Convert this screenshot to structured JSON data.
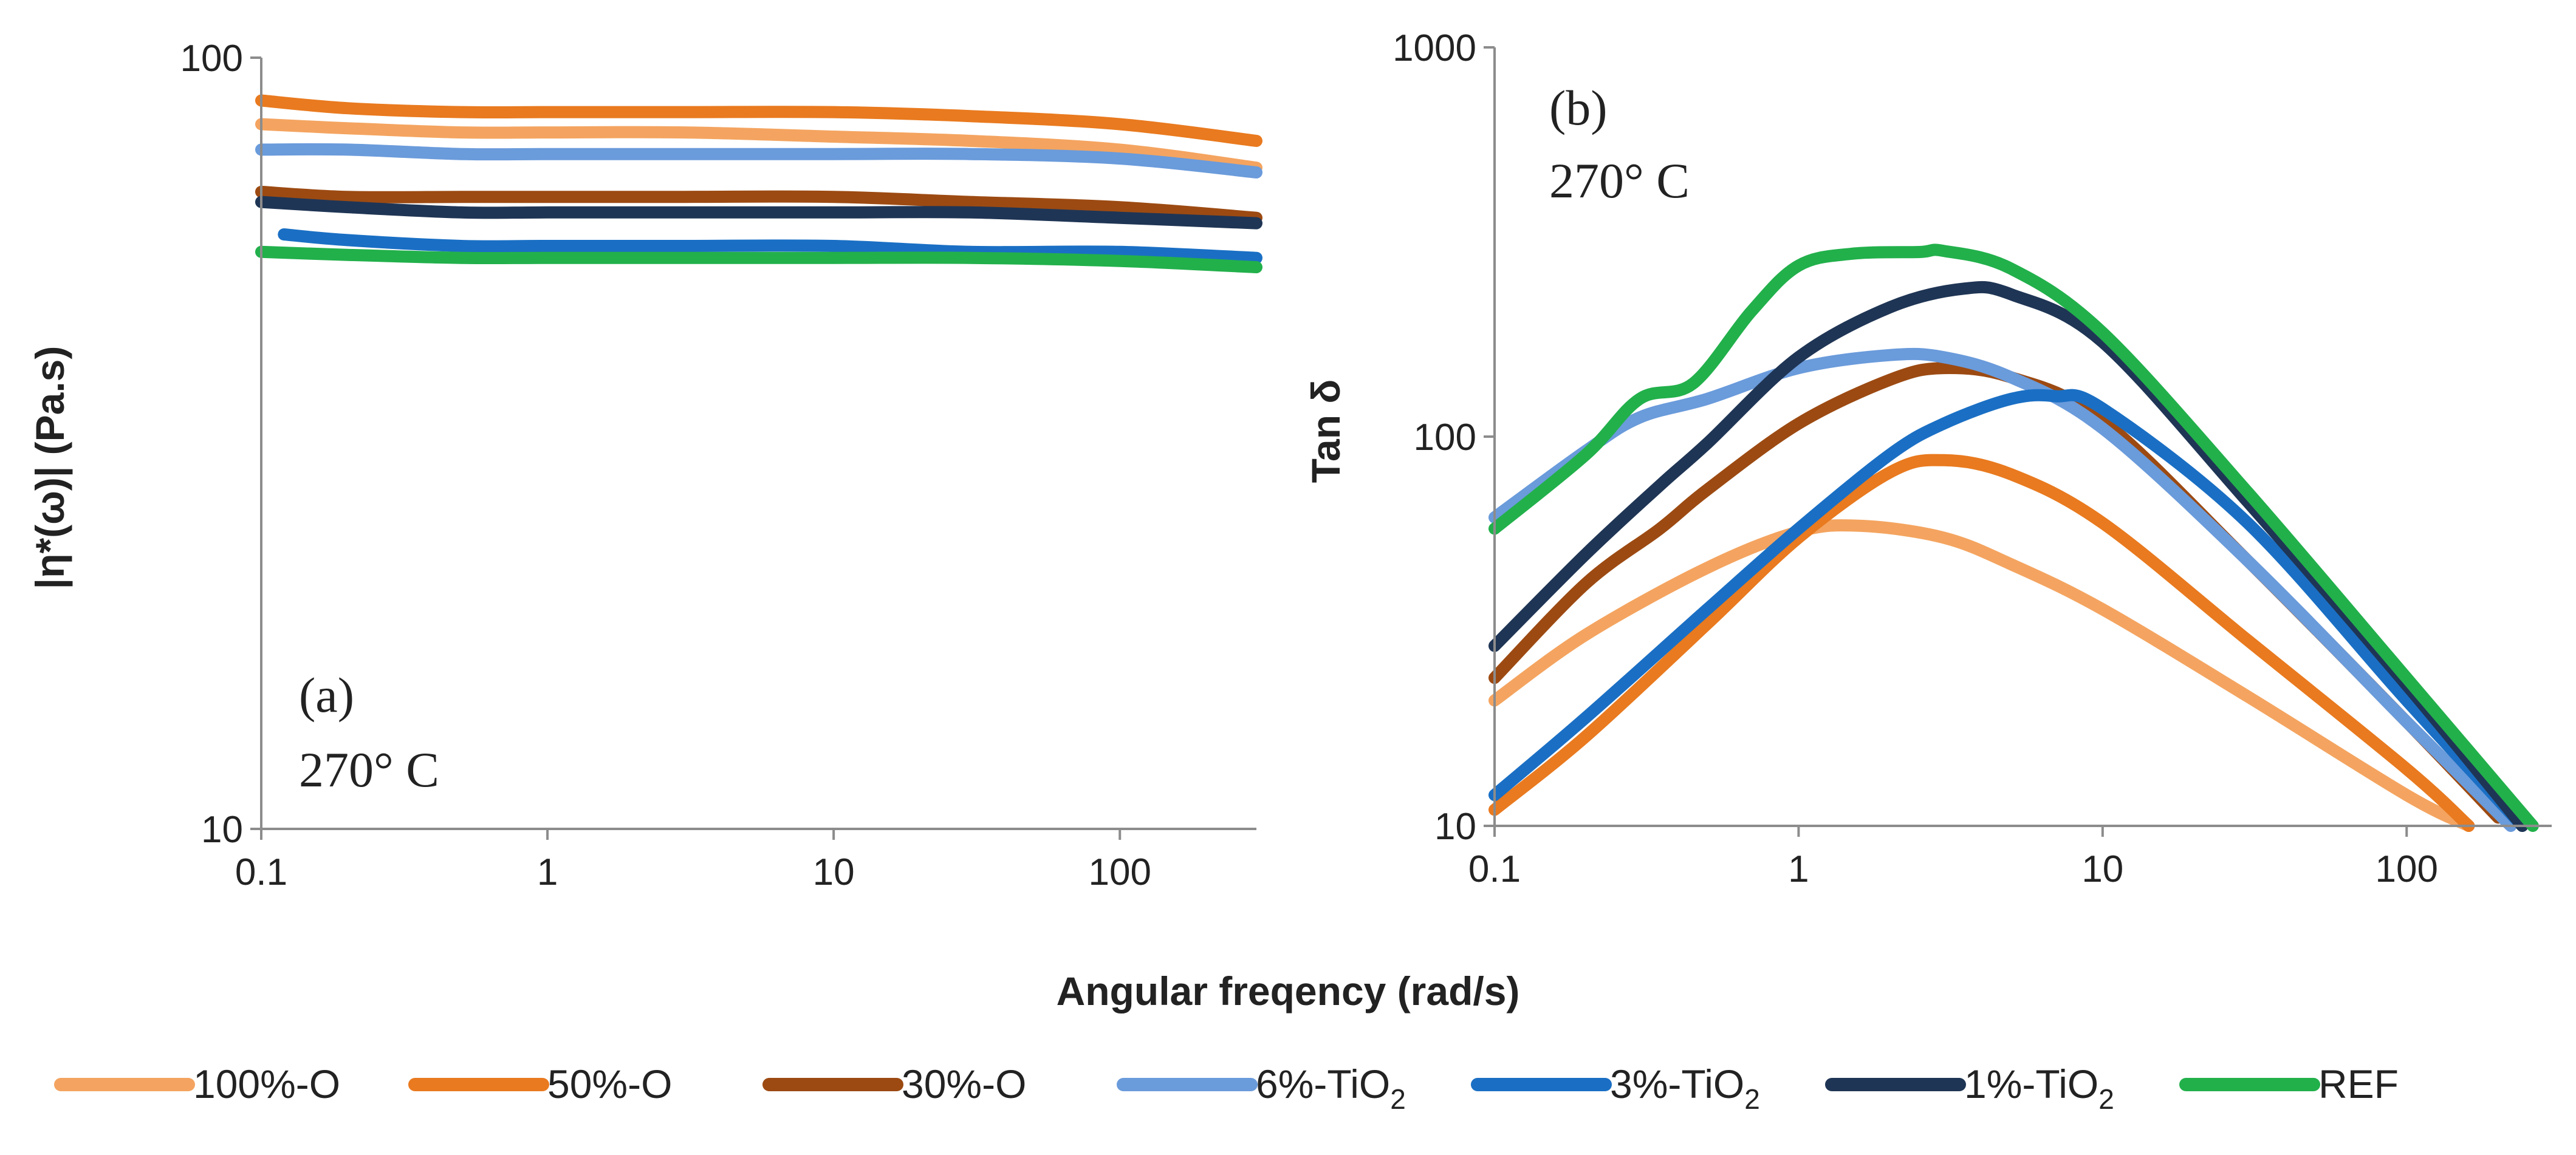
{
  "chart_data": [
    {
      "id": "a",
      "type": "line",
      "panel_label": "(a)",
      "panel_temp": "270°  C",
      "xlabel": "",
      "ylabel": "|η*(ω)| (Pa.s)",
      "xscale": "log",
      "yscale": "log",
      "xlim": [
        0.1,
        300
      ],
      "ylim": [
        10,
        100
      ],
      "x_ticks": [
        "0.1",
        "1",
        "10",
        "100"
      ],
      "y_ticks": [
        "10",
        "100"
      ],
      "grid": false,
      "series": [
        {
          "name": "100%-O",
          "color": "#F4A460",
          "x": [
            0.1,
            0.2,
            0.5,
            1,
            3,
            10,
            30,
            100,
            300
          ],
          "y": [
            82,
            81,
            80,
            80,
            80,
            79,
            78,
            76,
            72
          ]
        },
        {
          "name": "50%-O",
          "color": "#E97A1F",
          "x": [
            0.1,
            0.2,
            0.5,
            1,
            3,
            10,
            30,
            100,
            300
          ],
          "y": [
            88,
            86,
            85,
            85,
            85,
            85,
            84,
            82,
            78
          ]
        },
        {
          "name": "30%-O",
          "color": "#9C4A12",
          "x": [
            0.1,
            0.2,
            0.5,
            1,
            3,
            10,
            30,
            100,
            300
          ],
          "y": [
            67,
            66,
            66,
            66,
            66,
            66,
            65,
            64,
            62
          ]
        },
        {
          "name": "6%-TiO2",
          "color": "#6A9BDB",
          "x": [
            0.1,
            0.2,
            0.5,
            1,
            3,
            10,
            30,
            100,
            300
          ],
          "y": [
            76,
            76,
            75,
            75,
            75,
            75,
            75,
            74,
            71
          ]
        },
        {
          "name": "3%-TiO2",
          "color": "#1A6FC4",
          "x": [
            0.12,
            0.2,
            0.5,
            1,
            3,
            10,
            30,
            100,
            300
          ],
          "y": [
            59,
            58,
            57,
            57,
            57,
            57,
            56,
            56,
            55
          ]
        },
        {
          "name": "1%-TiO2",
          "color": "#1F3555",
          "x": [
            0.1,
            0.2,
            0.5,
            1,
            3,
            10,
            30,
            100,
            300
          ],
          "y": [
            65,
            64,
            63,
            63,
            63,
            63,
            63,
            62,
            61
          ]
        },
        {
          "name": "REF",
          "color": "#22B04B",
          "x": [
            0.1,
            0.2,
            0.5,
            1,
            3,
            10,
            30,
            100,
            300
          ],
          "y": [
            56,
            55.5,
            55,
            55,
            55,
            55,
            55,
            54.5,
            53.5
          ]
        }
      ]
    },
    {
      "id": "b",
      "type": "line",
      "panel_label": "(b)",
      "panel_temp": "270°  C",
      "xlabel": "",
      "ylabel": "Tan δ",
      "xscale": "log",
      "yscale": "log",
      "xlim": [
        0.1,
        300
      ],
      "ylim": [
        10,
        1000
      ],
      "x_ticks": [
        "0.1",
        "1",
        "10",
        "100"
      ],
      "y_ticks": [
        "10",
        "100",
        "1000"
      ],
      "grid": false,
      "series": [
        {
          "name": "100%-O",
          "color": "#F4A460",
          "x": [
            0.1,
            0.2,
            0.5,
            1,
            1.6,
            3,
            5,
            10,
            30,
            100,
            160
          ],
          "y": [
            21,
            31,
            46,
            57,
            59,
            55,
            47,
            36,
            21.5,
            12,
            10
          ]
        },
        {
          "name": "50%-O",
          "color": "#E97A1F",
          "x": [
            0.1,
            0.2,
            0.5,
            1,
            2,
            3,
            5,
            10,
            30,
            100,
            160
          ],
          "y": [
            11,
            17,
            33,
            55,
            81,
            87,
            80,
            60,
            30,
            14,
            10
          ]
        },
        {
          "name": "30%-O",
          "color": "#9C4A12",
          "x": [
            0.1,
            0.2,
            0.35,
            0.5,
            1,
            2,
            3,
            5,
            10,
            30,
            100,
            200
          ],
          "y": [
            24,
            42,
            58,
            73,
            108,
            140,
            150,
            142,
            110,
            48,
            18.5,
            10.5
          ]
        },
        {
          "name": "6%-TiO2",
          "color": "#6A9BDB",
          "x": [
            0.1,
            0.2,
            0.3,
            0.5,
            1,
            2,
            3,
            5,
            10,
            30,
            100,
            220
          ],
          "y": [
            62,
            92,
            112,
            125,
            150,
            162,
            160,
            142,
            105,
            48,
            18.5,
            10
          ]
        },
        {
          "name": "3%-TiO2",
          "color": "#1A6FC4",
          "x": [
            0.1,
            0.2,
            0.5,
            1,
            2,
            3,
            5,
            7,
            10,
            30,
            100,
            240
          ],
          "y": [
            12,
            19,
            36,
            58,
            90,
            108,
            125,
            127,
            118,
            60,
            21,
            10
          ]
        },
        {
          "name": "1%-TiO2",
          "color": "#1F3555",
          "x": [
            0.1,
            0.2,
            0.35,
            0.5,
            1,
            2,
            3.5,
            5,
            10,
            30,
            100,
            240
          ],
          "y": [
            29,
            50,
            75,
            96,
            160,
            215,
            240,
            232,
            175,
            68,
            23,
            10
          ]
        },
        {
          "name": "REF",
          "color": "#22B04B",
          "x": [
            0.1,
            0.2,
            0.3,
            0.45,
            0.7,
            1,
            1.5,
            2.5,
            3,
            5,
            10,
            30,
            100,
            260
          ],
          "y": [
            58,
            90,
            125,
            137,
            210,
            275,
            295,
            298,
            300,
            270,
            185,
            72,
            24,
            10
          ]
        }
      ]
    }
  ],
  "shared": {
    "xlabel": "Angular freqency (rad/s)"
  },
  "legend": {
    "placement": "bottom",
    "items": [
      {
        "label": "100%-O",
        "sub": "",
        "color": "#F4A460"
      },
      {
        "label": "50%-O",
        "sub": "",
        "color": "#E97A1F"
      },
      {
        "label": "30%-O",
        "sub": "",
        "color": "#9C4A12"
      },
      {
        "label": "6%-TiO",
        "sub": "2",
        "color": "#6A9BDB"
      },
      {
        "label": "3%-TiO",
        "sub": "2",
        "color": "#1A6FC4"
      },
      {
        "label": "1%-TiO",
        "sub": "2",
        "color": "#1F3555"
      },
      {
        "label": "REF",
        "sub": "",
        "color": "#22B04B"
      }
    ]
  }
}
